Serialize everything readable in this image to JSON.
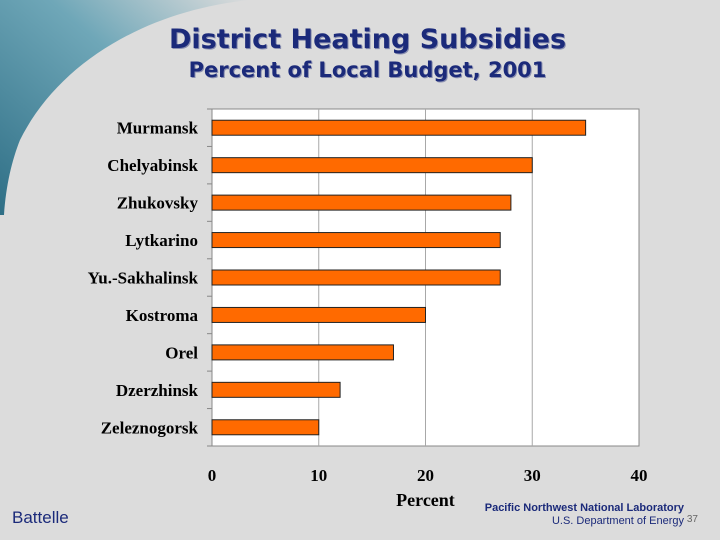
{
  "slide": {
    "title": "District Heating Subsidies",
    "subtitle": "Percent of Local Budget, 2001",
    "footer_left": "Battelle",
    "footer_lab": "Pacific Northwest National Laboratory",
    "footer_dept": "U.S. Department of Energy",
    "page_number": "37"
  },
  "colors": {
    "bar_fill": "#ff6a00",
    "bar_stroke": "#222222",
    "title": "#1b2a7a",
    "plot_bg": "#ffffff",
    "grid": "#a8a8a8"
  },
  "chart_data": {
    "type": "bar",
    "orientation": "horizontal",
    "title": "District Heating Subsidies",
    "subtitle": "Percent of Local Budget, 2001",
    "categories": [
      "Murmansk",
      "Chelyabinsk",
      "Zhukovsky",
      "Lytkarino",
      "Yu.-Sakhalinsk",
      "Kostroma",
      "Orel",
      "Dzerzhinsk",
      "Zeleznogorsk"
    ],
    "values": [
      35,
      30,
      28,
      27,
      27,
      20,
      17,
      12,
      10
    ],
    "xlabel": "Percent",
    "ylabel": "",
    "xlim": [
      0,
      40
    ],
    "xticks": [
      "0",
      "10",
      "20",
      "30",
      "40"
    ],
    "grid": true,
    "legend": "none"
  }
}
